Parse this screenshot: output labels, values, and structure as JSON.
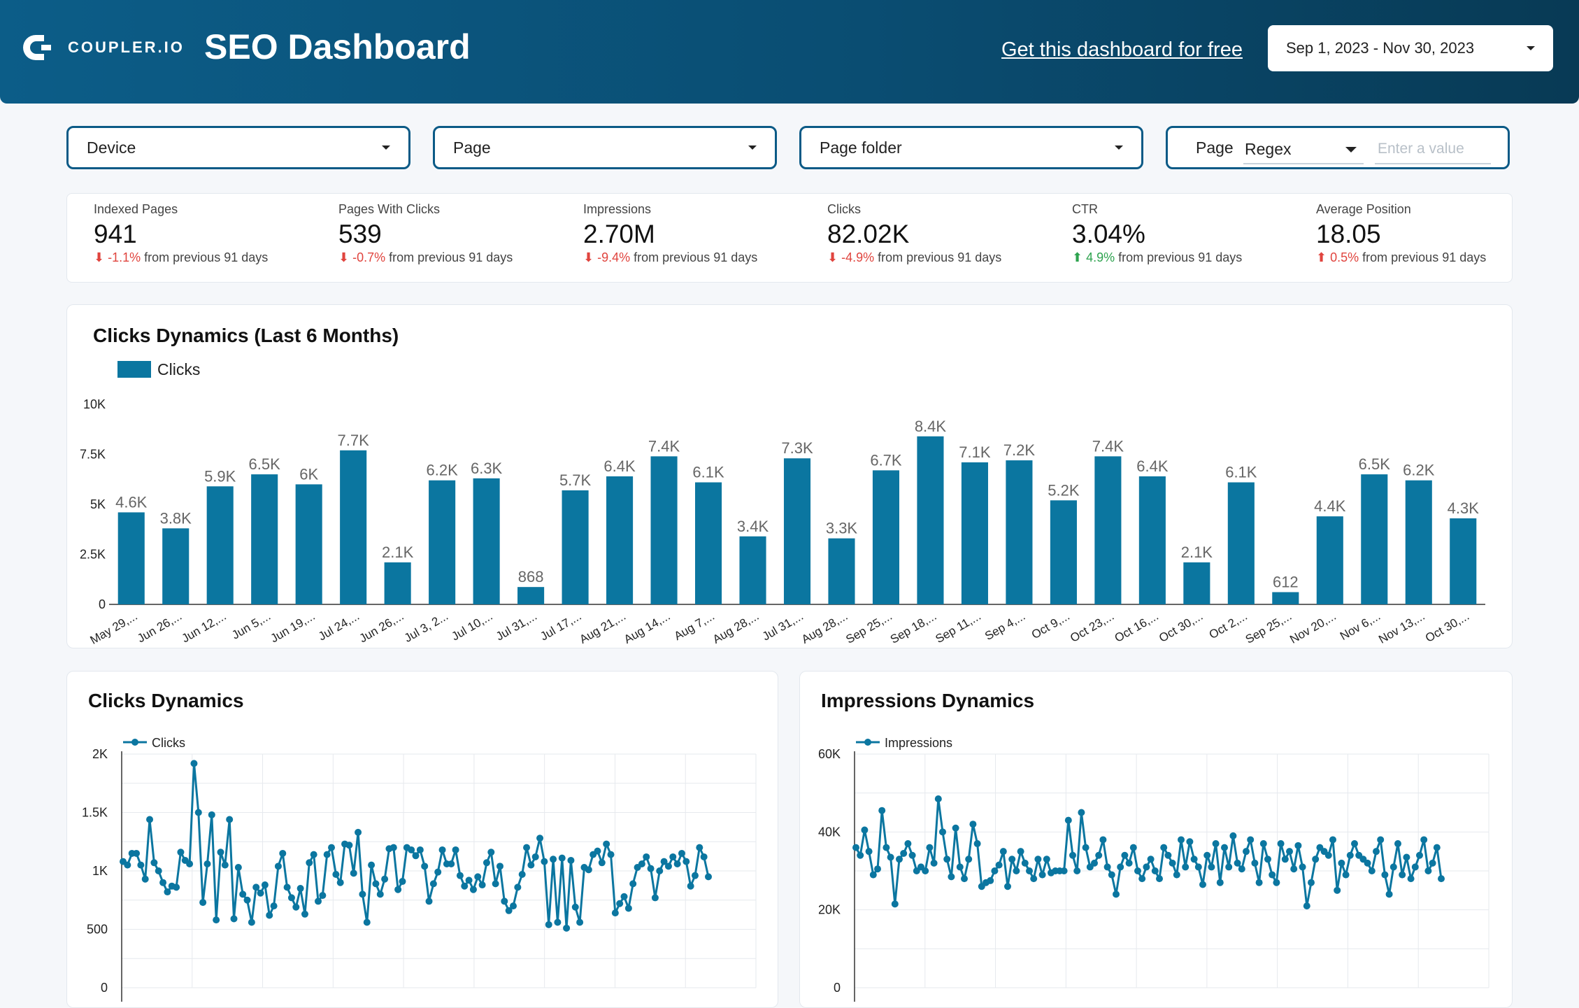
{
  "header": {
    "brand": "COUPLER.IO",
    "title": "SEO Dashboard",
    "cta": "Get this dashboard for free",
    "date_range": "Sep 1, 2023 - Nov 30, 2023"
  },
  "filters": {
    "device": "Device",
    "page": "Page",
    "page_folder": "Page folder",
    "page_regex_label": "Page",
    "regex_mode": "Regex",
    "regex_placeholder": "Enter a value"
  },
  "kpis": [
    {
      "label": "Indexed Pages",
      "value": "941",
      "arrow": "⬇",
      "delta": "-1.1%",
      "suffix": "from previous 91 days",
      "trend": "neg"
    },
    {
      "label": "Pages With Clicks",
      "value": "539",
      "arrow": "⬇",
      "delta": "-0.7%",
      "suffix": "from previous 91 days",
      "trend": "neg"
    },
    {
      "label": "Impressions",
      "value": "2.70M",
      "arrow": "⬇",
      "delta": "-9.4%",
      "suffix": "from previous 91 days",
      "trend": "neg"
    },
    {
      "label": "Clicks",
      "value": "82.02K",
      "arrow": "⬇",
      "delta": "-4.9%",
      "suffix": "from previous 91 days",
      "trend": "neg"
    },
    {
      "label": "CTR",
      "value": "3.04%",
      "arrow": "⬆",
      "delta": "4.9%",
      "suffix": "from previous 91 days",
      "trend": "pos"
    },
    {
      "label": "Average Position",
      "value": "18.05",
      "arrow": "⬆",
      "delta": "0.5%",
      "suffix": "from previous 91 days",
      "trend": "neg"
    }
  ],
  "colors": {
    "series": "#0b76a0",
    "grid": "#e6e9ee",
    "axis": "#222222"
  },
  "chart_data": [
    {
      "type": "bar",
      "title": "Clicks Dynamics (Last 6 Months)",
      "legend": "Clicks",
      "ylim": [
        0,
        10000
      ],
      "yticks": [
        "0",
        "2.5K",
        "5K",
        "7.5K",
        "10K"
      ],
      "categories": [
        "May 29,...",
        "Jun 26,...",
        "Jun 12,...",
        "Jun 5,...",
        "Jun 19,...",
        "Jul 24,...",
        "Jun 26,...",
        "Jul 3, 2...",
        "Jul 10,...",
        "Jul 31,...",
        "Jul 17,...",
        "Aug 21,...",
        "Aug 14,...",
        "Aug 7,...",
        "Aug 28,...",
        "Jul 31,...",
        "Aug 28,...",
        "Sep 25,...",
        "Sep 18,...",
        "Sep 11,...",
        "Sep 4,...",
        "Oct 9,...",
        "Oct 23,...",
        "Oct 16,...",
        "Oct 30,...",
        "Oct 2,...",
        "Sep 25,...",
        "Nov 20,...",
        "Nov 6,...",
        "Nov 13,...",
        "Oct 30,..."
      ],
      "values": [
        4600,
        3800,
        5900,
        6500,
        6000,
        7700,
        2100,
        6200,
        6300,
        868,
        5700,
        6400,
        7400,
        6100,
        3400,
        7300,
        3300,
        6700,
        8400,
        7100,
        7200,
        5200,
        7400,
        6400,
        2100,
        6100,
        612,
        4400,
        6500,
        6200,
        4300
      ],
      "labels": [
        "4.6K",
        "3.8K",
        "5.9K",
        "6.5K",
        "6K",
        "7.7K",
        "2.1K",
        "6.2K",
        "6.3K",
        "868",
        "5.7K",
        "6.4K",
        "7.4K",
        "6.1K",
        "3.4K",
        "7.3K",
        "3.3K",
        "6.7K",
        "8.4K",
        "7.1K",
        "7.2K",
        "5.2K",
        "7.4K",
        "6.4K",
        "2.1K",
        "6.1K",
        "612",
        "4.4K",
        "6.5K",
        "6.2K",
        "4.3K"
      ]
    },
    {
      "type": "line",
      "title": "Clicks Dynamics",
      "legend": "Clicks",
      "ylim": [
        0,
        2000
      ],
      "yticks": [
        "0",
        "500",
        "1K",
        "1.5K",
        "2K"
      ],
      "values": [
        1080,
        1050,
        1150,
        1150,
        1050,
        930,
        1440,
        1070,
        1000,
        900,
        820,
        870,
        860,
        1160,
        1090,
        1060,
        1920,
        1500,
        730,
        1060,
        1480,
        580,
        1160,
        1050,
        1440,
        590,
        1030,
        800,
        750,
        560,
        860,
        810,
        880,
        620,
        700,
        1040,
        1150,
        860,
        770,
        690,
        850,
        630,
        1070,
        1140,
        740,
        790,
        1140,
        1200,
        970,
        900,
        1230,
        1220,
        980,
        1330,
        800,
        560,
        1050,
        890,
        800,
        930,
        1190,
        1200,
        840,
        910,
        1200,
        1180,
        1130,
        1180,
        1040,
        740,
        890,
        990,
        1180,
        1060,
        1060,
        1180,
        960,
        870,
        920,
        840,
        950,
        880,
        1070,
        1160,
        890,
        1040,
        740,
        660,
        700,
        860,
        970,
        1200,
        1050,
        1120,
        1280,
        1080,
        540,
        1100,
        560,
        1110,
        510,
        1090,
        690,
        560,
        1030,
        1010,
        1140,
        1170,
        1070,
        1230,
        1140,
        640,
        720,
        780,
        680,
        890,
        1030,
        1060,
        1120,
        1020,
        770,
        1000,
        1080,
        1040,
        1120,
        1060,
        1150,
        1080,
        870,
        960,
        1200,
        1120,
        950
      ]
    },
    {
      "type": "line",
      "title": "Impressions Dynamics",
      "legend": "Impressions",
      "ylim": [
        0,
        60000
      ],
      "yticks": [
        "0",
        "20K",
        "40K",
        "60K"
      ],
      "values": [
        36000,
        34000,
        40500,
        35000,
        29000,
        30500,
        45500,
        36000,
        33500,
        21500,
        33000,
        34500,
        37000,
        34000,
        30000,
        31000,
        30000,
        36000,
        32000,
        48500,
        40000,
        33000,
        28500,
        41000,
        31000,
        28000,
        33000,
        42000,
        37000,
        26000,
        27000,
        27500,
        30000,
        31500,
        35000,
        26000,
        33000,
        30000,
        35000,
        32000,
        30000,
        28000,
        33000,
        29000,
        33000,
        29500,
        30000,
        30000,
        30000,
        43000,
        34000,
        30000,
        45000,
        36000,
        31000,
        32000,
        34000,
        38000,
        31000,
        29000,
        24000,
        31000,
        34000,
        32000,
        36000,
        30000,
        28000,
        31000,
        33000,
        30000,
        28000,
        36000,
        34000,
        32000,
        29000,
        38000,
        31000,
        37500,
        33000,
        31000,
        26500,
        34000,
        31000,
        37000,
        27000,
        36000,
        31000,
        39000,
        32000,
        30500,
        35000,
        38000,
        32000,
        27000,
        37000,
        33000,
        29000,
        27000,
        37000,
        33000,
        35000,
        30500,
        36500,
        31000,
        21000,
        27000,
        33000,
        36000,
        35000,
        34000,
        38000,
        25000,
        32000,
        29000,
        34000,
        37000,
        34000,
        33000,
        32000,
        30000,
        35000,
        38000,
        29000,
        24000,
        31000,
        37000,
        29000,
        33500,
        28000,
        31000,
        34000,
        38000,
        30000,
        32000,
        36000,
        28000
      ]
    }
  ]
}
